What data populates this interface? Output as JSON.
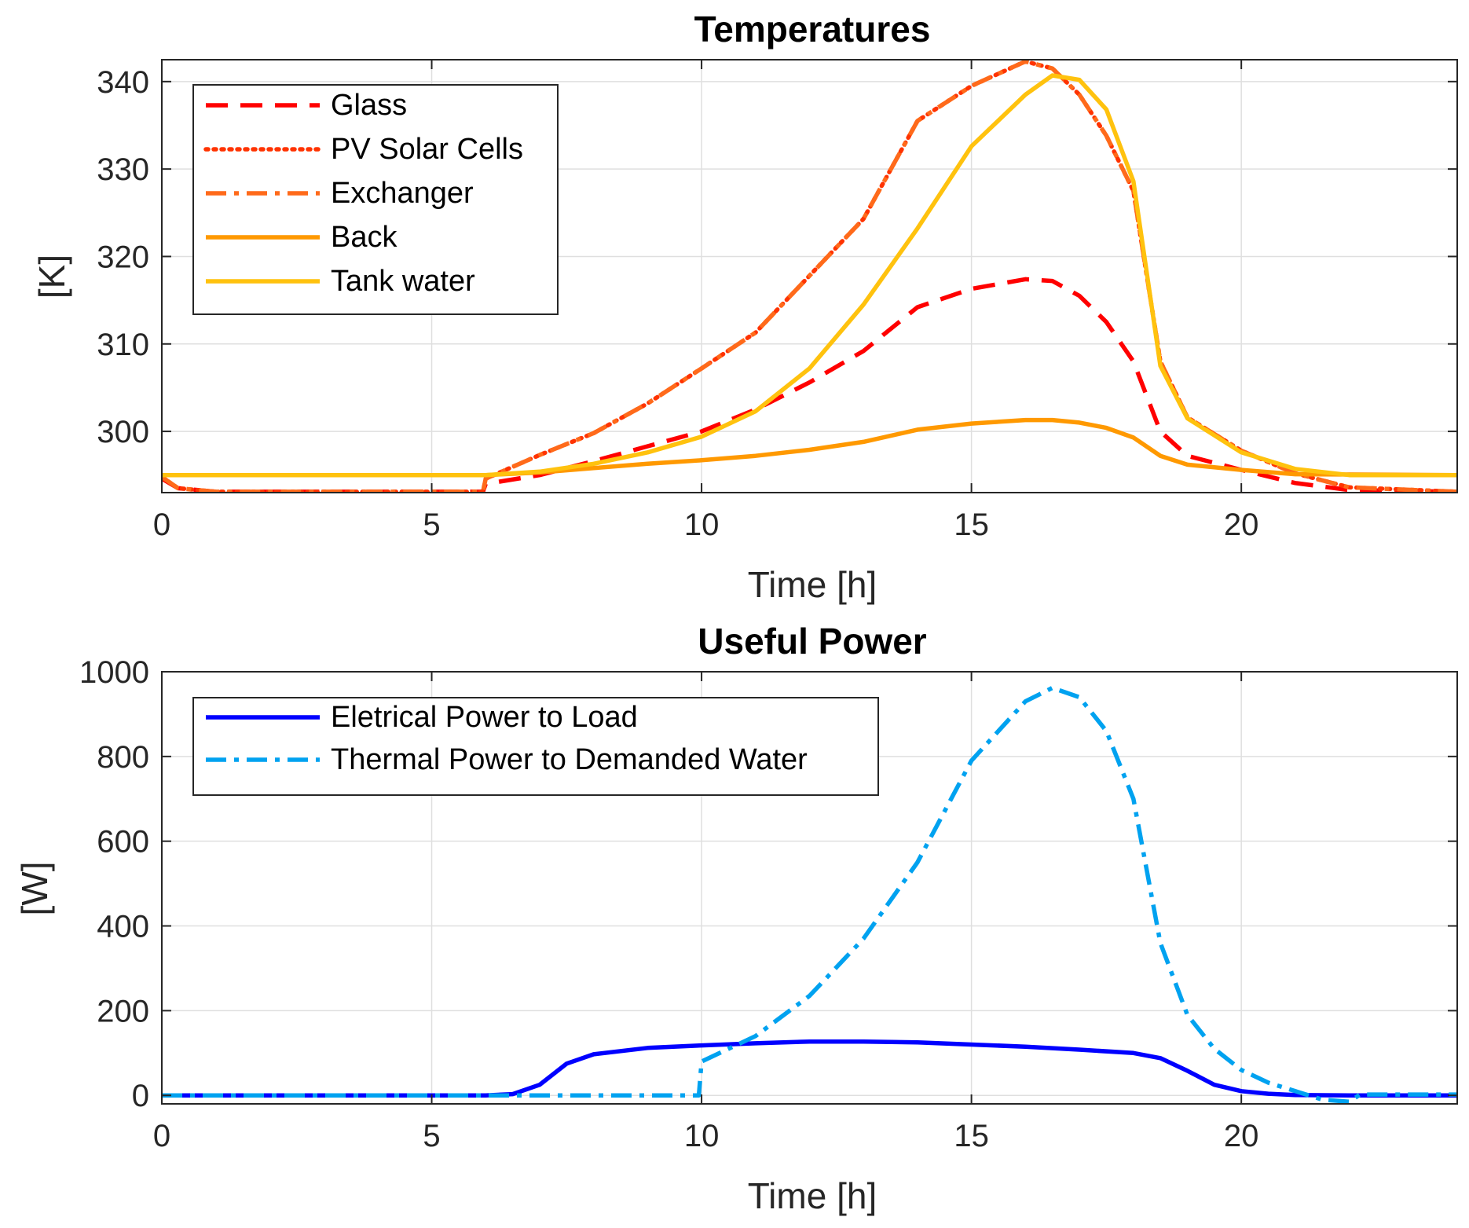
{
  "chart_data": [
    {
      "type": "line",
      "title": "Temperatures",
      "xlabel": "Time [h]",
      "ylabel": "[K]",
      "xlim": [
        0,
        24
      ],
      "ylim": [
        293,
        342.5
      ],
      "xticks": [
        0,
        5,
        10,
        15,
        20
      ],
      "yticks": [
        300,
        310,
        320,
        330,
        340
      ],
      "grid": true,
      "legend_position": "top-left",
      "series": [
        {
          "name": "Glass",
          "color": "#ff0000",
          "style": "dashed",
          "points": [
            [
              0,
              294.6
            ],
            [
              0.3,
              293.5
            ],
            [
              1,
              293.1
            ],
            [
              5.95,
              293.1
            ],
            [
              6,
              294
            ],
            [
              7,
              295
            ],
            [
              8,
              296.6
            ],
            [
              9,
              298.3
            ],
            [
              10,
              300
            ],
            [
              11,
              302.5
            ],
            [
              12,
              305.6
            ],
            [
              13,
              309.2
            ],
            [
              14,
              314.2
            ],
            [
              15,
              316.3
            ],
            [
              16,
              317.4
            ],
            [
              16.5,
              317.2
            ],
            [
              17,
              315.5
            ],
            [
              17.5,
              312.5
            ],
            [
              18,
              308
            ],
            [
              18.5,
              300
            ],
            [
              19,
              297.2
            ],
            [
              20,
              295.6
            ],
            [
              21,
              294.1
            ],
            [
              22,
              293.3
            ],
            [
              24,
              293.1
            ]
          ]
        },
        {
          "name": "PV Solar Cells",
          "color": "#ff3300",
          "style": "dotted",
          "points": [
            [
              0,
              294.8
            ],
            [
              0.3,
              293.5
            ],
            [
              1,
              293.1
            ],
            [
              5.95,
              293.1
            ],
            [
              6,
              294.6
            ],
            [
              7,
              297.3
            ],
            [
              8,
              299.8
            ],
            [
              9,
              303.2
            ],
            [
              10,
              307.2
            ],
            [
              11,
              311.3
            ],
            [
              12,
              317.8
            ],
            [
              13,
              324.3
            ],
            [
              14,
              335.5
            ],
            [
              15,
              339.5
            ],
            [
              16,
              342.3
            ],
            [
              16.5,
              341.5
            ],
            [
              17,
              338.5
            ],
            [
              17.5,
              333.8
            ],
            [
              18,
              327.5
            ],
            [
              18.5,
              308
            ],
            [
              19,
              301.6
            ],
            [
              20,
              297.8
            ],
            [
              21,
              295.2
            ],
            [
              22,
              293.6
            ],
            [
              24,
              293.1
            ]
          ]
        },
        {
          "name": "Exchanger",
          "color": "#ff6a1a",
          "style": "dashdot",
          "points": [
            [
              0,
              294.8
            ],
            [
              0.3,
              293.5
            ],
            [
              1,
              293.1
            ],
            [
              5.95,
              293.1
            ],
            [
              6,
              294.6
            ],
            [
              7,
              297.3
            ],
            [
              8,
              299.8
            ],
            [
              9,
              303.2
            ],
            [
              10,
              307.2
            ],
            [
              11,
              311.3
            ],
            [
              12,
              317.8
            ],
            [
              13,
              324.3
            ],
            [
              14,
              335.5
            ],
            [
              15,
              339.5
            ],
            [
              16,
              342.3
            ],
            [
              16.5,
              341.5
            ],
            [
              17,
              338.5
            ],
            [
              17.5,
              333.8
            ],
            [
              18,
              327.5
            ],
            [
              18.5,
              308
            ],
            [
              19,
              301.6
            ],
            [
              20,
              297.8
            ],
            [
              21,
              295.2
            ],
            [
              22,
              293.6
            ],
            [
              24,
              293.1
            ]
          ]
        },
        {
          "name": "Back",
          "color": "#ff9900",
          "style": "solid",
          "points": [
            [
              0,
              295
            ],
            [
              6,
              295
            ],
            [
              7,
              295.3
            ],
            [
              8,
              295.8
            ],
            [
              9,
              296.3
            ],
            [
              10,
              296.7
            ],
            [
              11,
              297.2
            ],
            [
              12,
              297.9
            ],
            [
              13,
              298.8
            ],
            [
              14,
              300.2
            ],
            [
              15,
              300.9
            ],
            [
              16,
              301.3
            ],
            [
              16.5,
              301.3
            ],
            [
              17,
              301
            ],
            [
              17.5,
              300.4
            ],
            [
              18,
              299.3
            ],
            [
              18.5,
              297.2
            ],
            [
              19,
              296.2
            ],
            [
              20,
              295.6
            ],
            [
              21,
              295.1
            ],
            [
              24,
              295
            ]
          ]
        },
        {
          "name": "Tank water",
          "color": "#ffc20e",
          "style": "solid",
          "points": [
            [
              0,
              295
            ],
            [
              6,
              295
            ],
            [
              7,
              295.4
            ],
            [
              8,
              296.3
            ],
            [
              9,
              297.6
            ],
            [
              10,
              299.4
            ],
            [
              11,
              302.3
            ],
            [
              12,
              307.2
            ],
            [
              13,
              314.5
            ],
            [
              14,
              323.2
            ],
            [
              15,
              332.6
            ],
            [
              16,
              338.5
            ],
            [
              16.5,
              340.7
            ],
            [
              17,
              340.2
            ],
            [
              17.5,
              336.8
            ],
            [
              18,
              328.6
            ],
            [
              18.5,
              307.5
            ],
            [
              19,
              301.5
            ],
            [
              20,
              297.6
            ],
            [
              21,
              295.7
            ],
            [
              22,
              295
            ],
            [
              24,
              295
            ]
          ]
        }
      ]
    },
    {
      "type": "line",
      "title": "Useful Power",
      "xlabel": "Time [h]",
      "ylabel": "[W]",
      "xlim": [
        0,
        24
      ],
      "ylim": [
        -20,
        1000
      ],
      "xticks": [
        0,
        5,
        10,
        15,
        20
      ],
      "yticks": [
        0,
        200,
        400,
        600,
        800,
        1000
      ],
      "grid": true,
      "legend_position": "top-left",
      "series": [
        {
          "name": "Eletrical Power to Load",
          "color": "#0000ff",
          "style": "solid",
          "points": [
            [
              0,
              0
            ],
            [
              6,
              0
            ],
            [
              6.5,
              3
            ],
            [
              7,
              25
            ],
            [
              7.5,
              75
            ],
            [
              8,
              97
            ],
            [
              9,
              112
            ],
            [
              10,
              118
            ],
            [
              11,
              123
            ],
            [
              12,
              127
            ],
            [
              13,
              127
            ],
            [
              14,
              125
            ],
            [
              15,
              120
            ],
            [
              16,
              115
            ],
            [
              17,
              108
            ],
            [
              18,
              100
            ],
            [
              18.5,
              88
            ],
            [
              19,
              58
            ],
            [
              19.5,
              25
            ],
            [
              20,
              10
            ],
            [
              20.5,
              4
            ],
            [
              21,
              1
            ],
            [
              22,
              0
            ],
            [
              24,
              0
            ]
          ]
        },
        {
          "name": "Thermal Power to Demanded Water",
          "color": "#00a2f0",
          "style": "dashdot",
          "points": [
            [
              0,
              0
            ],
            [
              9.95,
              0
            ],
            [
              10,
              80
            ],
            [
              11,
              140
            ],
            [
              12,
              235
            ],
            [
              13,
              370
            ],
            [
              14,
              550
            ],
            [
              15,
              790
            ],
            [
              16,
              930
            ],
            [
              16.5,
              962
            ],
            [
              17,
              940
            ],
            [
              17.5,
              860
            ],
            [
              18,
              700
            ],
            [
              18.5,
              360
            ],
            [
              19,
              190
            ],
            [
              19.5,
              110
            ],
            [
              20,
              60
            ],
            [
              20.5,
              30
            ],
            [
              21,
              10
            ],
            [
              21.5,
              -10
            ],
            [
              22,
              -15
            ],
            [
              22.2,
              2
            ],
            [
              24,
              2
            ]
          ]
        }
      ]
    }
  ]
}
